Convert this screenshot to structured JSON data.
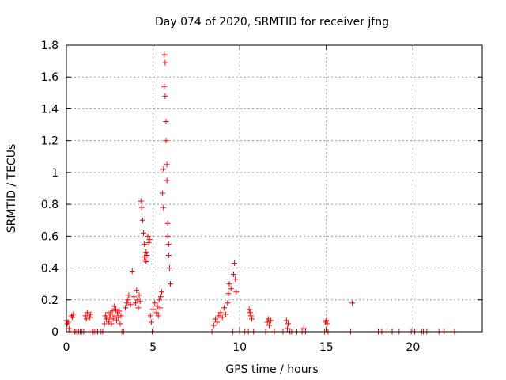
{
  "chart_data": {
    "type": "scatter",
    "title": "Day 074 of 2020, SRMTID for receiver jfng",
    "xlabel": "GPS time / hours",
    "ylabel": "SRMTID / TECUs",
    "xlim": [
      0,
      24
    ],
    "ylim": [
      0,
      1.8
    ],
    "xticks": [
      0,
      5,
      10,
      15,
      20
    ],
    "xtick_labels": [
      "0",
      "5",
      "10",
      "15",
      "20"
    ],
    "yticks": [
      0,
      0.2,
      0.4,
      0.6,
      0.8,
      1,
      1.2,
      1.4,
      1.6,
      1.8
    ],
    "ytick_labels": [
      "0",
      "0.2",
      "0.4",
      "0.6",
      "0.8",
      "1",
      "1.2",
      "1.4",
      "1.6",
      "1.8"
    ],
    "grid": true,
    "marker": "+",
    "marker_color": "#ff0000",
    "series": [
      {
        "name": "SRMTID",
        "x": [
          0.0,
          0.05,
          0.1,
          0.15,
          0.2,
          0.3,
          0.35,
          0.4,
          0.45,
          0.5,
          0.6,
          0.7,
          0.8,
          0.9,
          1.0,
          1.1,
          1.15,
          1.2,
          1.3,
          1.35,
          1.4,
          1.5,
          1.6,
          1.7,
          1.8,
          2.0,
          2.1,
          2.2,
          2.25,
          2.3,
          2.4,
          2.45,
          2.5,
          2.55,
          2.6,
          2.65,
          2.7,
          2.75,
          2.8,
          2.85,
          2.9,
          2.95,
          3.0,
          3.05,
          3.1,
          3.15,
          3.2,
          3.3,
          3.4,
          3.5,
          3.55,
          3.6,
          3.7,
          3.8,
          3.9,
          4.0,
          4.05,
          4.1,
          4.15,
          4.2,
          4.25,
          4.3,
          4.35,
          4.4,
          4.45,
          4.5,
          4.5,
          4.55,
          4.6,
          4.6,
          4.65,
          4.7,
          4.75,
          4.8,
          4.85,
          4.9,
          4.95,
          5.0,
          5.1,
          5.2,
          5.25,
          5.3,
          5.35,
          5.4,
          5.45,
          5.5,
          5.55,
          5.6,
          5.6,
          5.65,
          5.65,
          5.7,
          5.7,
          5.75,
          5.75,
          5.8,
          5.8,
          5.85,
          5.85,
          5.9,
          5.9,
          5.95,
          6.0,
          8.4,
          8.5,
          8.6,
          8.7,
          8.8,
          8.9,
          9.0,
          9.1,
          9.2,
          9.3,
          9.35,
          9.4,
          9.5,
          9.6,
          9.65,
          9.7,
          9.75,
          9.8,
          10.0,
          10.3,
          10.5,
          10.55,
          10.6,
          10.65,
          10.7,
          10.8,
          11.5,
          11.6,
          11.65,
          11.7,
          11.8,
          12.0,
          12.5,
          12.7,
          12.75,
          12.8,
          12.9,
          13.0,
          13.3,
          13.6,
          13.7,
          13.8,
          14.9,
          14.95,
          15.0,
          15.05,
          15.1,
          16.4,
          16.5,
          18.0,
          18.2,
          18.5,
          18.8,
          19.2,
          19.9,
          20.1,
          20.5,
          20.6,
          20.8,
          21.5,
          21.8,
          22.4
        ],
        "y": [
          0.07,
          0.05,
          0.06,
          0.02,
          0.0,
          0.1,
          0.09,
          0.11,
          0.0,
          0.0,
          0.0,
          0.0,
          0.0,
          0.0,
          0.0,
          0.1,
          0.08,
          0.12,
          0.0,
          0.09,
          0.11,
          0.0,
          0.0,
          0.0,
          0.0,
          0.0,
          0.0,
          0.05,
          0.1,
          0.08,
          0.12,
          0.06,
          0.09,
          0.11,
          0.05,
          0.13,
          0.08,
          0.16,
          0.1,
          0.14,
          0.07,
          0.12,
          0.09,
          0.13,
          0.05,
          0.1,
          0.0,
          0.0,
          0.15,
          0.18,
          0.2,
          0.23,
          0.17,
          0.38,
          0.22,
          0.18,
          0.26,
          0.2,
          0.15,
          0.23,
          0.19,
          0.82,
          0.78,
          0.7,
          0.62,
          0.55,
          0.47,
          0.45,
          0.5,
          0.44,
          0.48,
          0.6,
          0.56,
          0.58,
          0.1,
          0.06,
          0.0,
          0.14,
          0.18,
          0.12,
          0.16,
          0.1,
          0.2,
          0.15,
          0.22,
          0.25,
          0.87,
          0.78,
          1.02,
          1.54,
          1.74,
          1.69,
          1.48,
          1.32,
          1.2,
          1.05,
          0.95,
          0.68,
          0.6,
          0.55,
          0.48,
          0.4,
          0.3,
          0.0,
          0.04,
          0.08,
          0.06,
          0.1,
          0.12,
          0.09,
          0.15,
          0.11,
          0.18,
          0.24,
          0.3,
          0.27,
          0.0,
          0.36,
          0.43,
          0.33,
          0.25,
          0.0,
          0.0,
          0.0,
          0.14,
          0.12,
          0.1,
          0.08,
          0.0,
          0.0,
          0.06,
          0.08,
          0.04,
          0.07,
          0.0,
          0.0,
          0.07,
          0.02,
          0.05,
          0.0,
          0.0,
          0.0,
          0.0,
          0.02,
          0.0,
          0.0,
          0.06,
          0.07,
          0.05,
          0.0,
          0.0,
          0.18,
          0.0,
          0.0,
          0.0,
          0.0,
          0.0,
          0.0,
          0.0,
          0.0,
          0.0,
          0.0,
          0.0,
          0.0,
          0.0
        ]
      }
    ]
  }
}
